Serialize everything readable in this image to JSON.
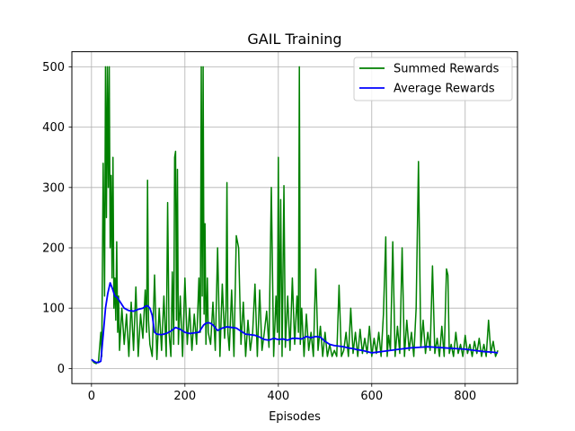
{
  "chart_data": {
    "type": "line",
    "title": "GAIL Training",
    "xlabel": "Episodes",
    "ylabel": "",
    "xlim": [
      -42,
      912
    ],
    "ylim": [
      -25,
      525
    ],
    "xticks": [
      0,
      200,
      400,
      600,
      800
    ],
    "yticks": [
      0,
      100,
      200,
      300,
      400,
      500
    ],
    "grid": true,
    "legend": {
      "placement": "top-right"
    },
    "colors": {
      "summed": "#008000",
      "average": "#0000ff"
    },
    "series": [
      {
        "name": "Summed Rewards",
        "color": "#008000",
        "x": [
          0,
          5,
          10,
          15,
          20,
          22,
          25,
          28,
          30,
          32,
          34,
          36,
          38,
          40,
          42,
          44,
          46,
          48,
          50,
          52,
          54,
          56,
          58,
          60,
          65,
          70,
          75,
          80,
          85,
          90,
          95,
          100,
          105,
          110,
          115,
          118,
          120,
          122,
          125,
          130,
          135,
          140,
          145,
          150,
          155,
          160,
          163,
          166,
          170,
          173,
          176,
          178,
          180,
          182,
          184,
          186,
          190,
          195,
          200,
          205,
          210,
          215,
          220,
          225,
          230,
          233,
          235,
          237,
          239,
          241,
          243,
          245,
          248,
          250,
          255,
          260,
          265,
          270,
          275,
          280,
          285,
          288,
          290,
          292,
          295,
          300,
          305,
          310,
          315,
          320,
          325,
          330,
          335,
          340,
          345,
          350,
          355,
          360,
          365,
          370,
          375,
          380,
          385,
          390,
          395,
          398,
          400,
          402,
          405,
          408,
          412,
          415,
          420,
          425,
          430,
          435,
          440,
          443,
          445,
          447,
          450,
          455,
          460,
          465,
          470,
          475,
          480,
          485,
          490,
          495,
          500,
          505,
          510,
          515,
          520,
          525,
          530,
          535,
          540,
          545,
          550,
          555,
          560,
          565,
          570,
          575,
          580,
          585,
          590,
          595,
          600,
          605,
          610,
          615,
          620,
          625,
          630,
          633,
          636,
          640,
          645,
          650,
          655,
          660,
          665,
          670,
          675,
          680,
          685,
          690,
          695,
          700,
          705,
          710,
          715,
          720,
          725,
          730,
          735,
          740,
          745,
          750,
          755,
          760,
          763,
          766,
          770,
          775,
          780,
          785,
          790,
          795,
          800,
          805,
          810,
          815,
          820,
          825,
          830,
          835,
          840,
          845,
          850,
          855,
          860,
          865,
          870
        ],
        "values": [
          15,
          10,
          8,
          12,
          60,
          20,
          340,
          120,
          500,
          250,
          500,
          300,
          500,
          200,
          320,
          150,
          350,
          100,
          150,
          80,
          210,
          60,
          120,
          30,
          100,
          40,
          90,
          20,
          110,
          30,
          135,
          20,
          90,
          50,
          130,
          60,
          312,
          80,
          40,
          20,
          155,
          15,
          100,
          30,
          120,
          20,
          275,
          60,
          20,
          160,
          40,
          350,
          360,
          80,
          330,
          40,
          120,
          20,
          150,
          40,
          100,
          30,
          90,
          40,
          150,
          60,
          500,
          120,
          500,
          90,
          240,
          40,
          150,
          60,
          40,
          110,
          30,
          200,
          20,
          140,
          50,
          100,
          308,
          60,
          30,
          130,
          20,
          220,
          200,
          40,
          110,
          20,
          80,
          30,
          60,
          140,
          20,
          130,
          30,
          60,
          95,
          35,
          300,
          20,
          120,
          60,
          350,
          40,
          280,
          20,
          303,
          35,
          120,
          30,
          150,
          40,
          120,
          60,
          500,
          40,
          100,
          20,
          90,
          30,
          60,
          20,
          165,
          30,
          70,
          20,
          60,
          20,
          40,
          20,
          30,
          20,
          138,
          20,
          30,
          60,
          20,
          100,
          25,
          60,
          20,
          65,
          25,
          50,
          25,
          70,
          20,
          50,
          25,
          60,
          20,
          90,
          218,
          20,
          55,
          30,
          210,
          20,
          70,
          25,
          200,
          20,
          80,
          30,
          60,
          20,
          100,
          343,
          35,
          80,
          25,
          60,
          30,
          170,
          25,
          50,
          20,
          70,
          20,
          165,
          155,
          25,
          40,
          20,
          60,
          25,
          40,
          20,
          55,
          25,
          40,
          20,
          45,
          25,
          50,
          20,
          40,
          20,
          80,
          25,
          45,
          20,
          30
        ]
      },
      {
        "name": "Average Rewards",
        "color": "#0000ff",
        "x": [
          0,
          5,
          10,
          15,
          20,
          25,
          30,
          35,
          40,
          45,
          50,
          55,
          60,
          70,
          80,
          90,
          100,
          110,
          115,
          120,
          125,
          130,
          135,
          140,
          150,
          160,
          170,
          180,
          190,
          200,
          210,
          220,
          230,
          235,
          240,
          245,
          250,
          255,
          260,
          270,
          280,
          290,
          300,
          310,
          320,
          330,
          340,
          350,
          360,
          370,
          380,
          390,
          400,
          410,
          420,
          430,
          440,
          450,
          460,
          470,
          480,
          490,
          500,
          510,
          520,
          530,
          540,
          550,
          560,
          570,
          580,
          590,
          600,
          620,
          640,
          660,
          680,
          700,
          720,
          740,
          760,
          780,
          800,
          820,
          840,
          860,
          870
        ],
        "values": [
          15,
          12,
          10,
          10,
          12,
          55,
          100,
          125,
          142,
          132,
          120,
          118,
          112,
          100,
          96,
          95,
          98,
          100,
          103,
          104,
          100,
          88,
          60,
          57,
          56,
          58,
          62,
          68,
          65,
          60,
          58,
          59,
          60,
          66,
          72,
          75,
          76,
          75,
          72,
          63,
          67,
          69,
          68,
          67,
          62,
          57,
          56,
          55,
          52,
          48,
          47,
          50,
          48,
          49,
          47,
          50,
          50,
          49,
          53,
          51,
          53,
          52,
          45,
          40,
          38,
          37,
          36,
          34,
          33,
          31,
          30,
          28,
          26,
          28,
          30,
          32,
          34,
          35,
          36,
          35,
          34,
          33,
          32,
          30,
          28,
          27,
          26
        ]
      }
    ]
  }
}
